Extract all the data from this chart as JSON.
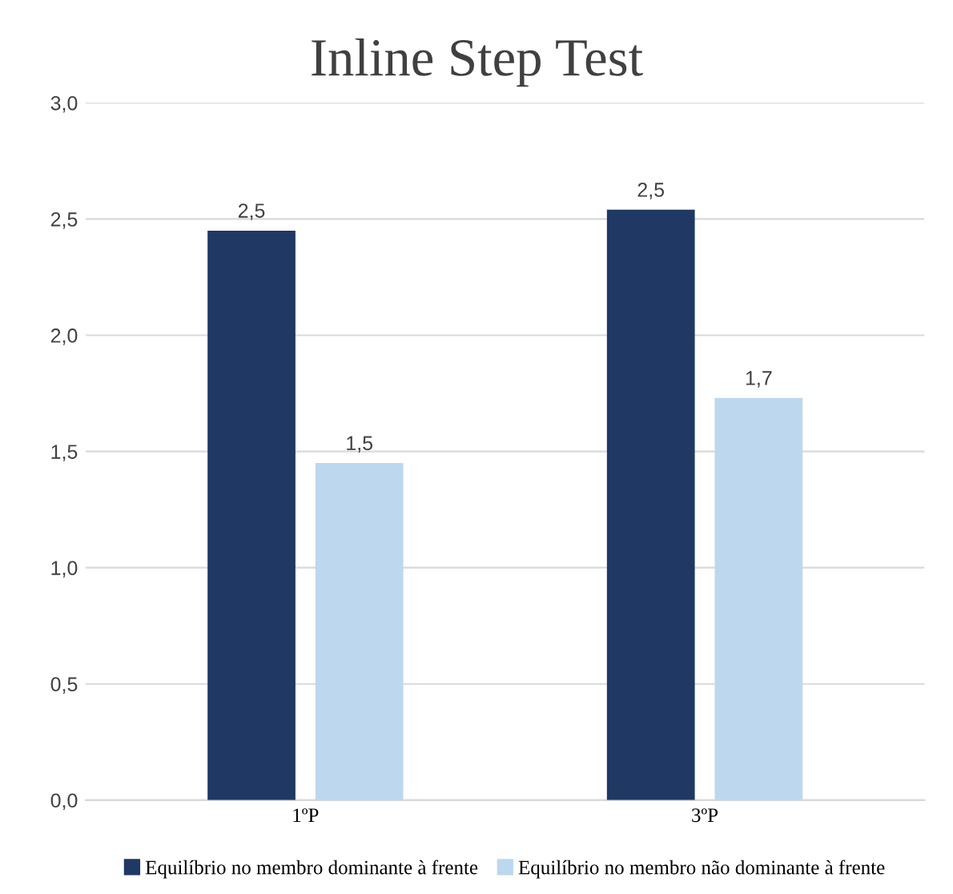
{
  "chart_data": {
    "type": "bar",
    "title": "Inline Step Test",
    "categories": [
      "1ºP",
      "3ºP"
    ],
    "series": [
      {
        "name": "Equilíbrio no membro dominante à frente",
        "color": "#1f3864",
        "values": [
          2.45,
          2.54
        ],
        "value_labels": [
          "2,5",
          "2,5"
        ]
      },
      {
        "name": "Equilíbrio no membro não dominante à frente",
        "color": "#bdd7ee",
        "values": [
          1.45,
          1.73
        ],
        "value_labels": [
          "1,5",
          "1,7"
        ]
      }
    ],
    "ylim": [
      0,
      3
    ],
    "yticks": [
      {
        "value": 0,
        "label": "0,0"
      },
      {
        "value": 0.5,
        "label": "0,5"
      },
      {
        "value": 1,
        "label": "1,0"
      },
      {
        "value": 1.5,
        "label": "1,5"
      },
      {
        "value": 2,
        "label": "2,0"
      },
      {
        "value": 2.5,
        "label": "2,5"
      },
      {
        "value": 3,
        "label": "3,0"
      }
    ],
    "grid": "y",
    "legend": "bottom"
  }
}
